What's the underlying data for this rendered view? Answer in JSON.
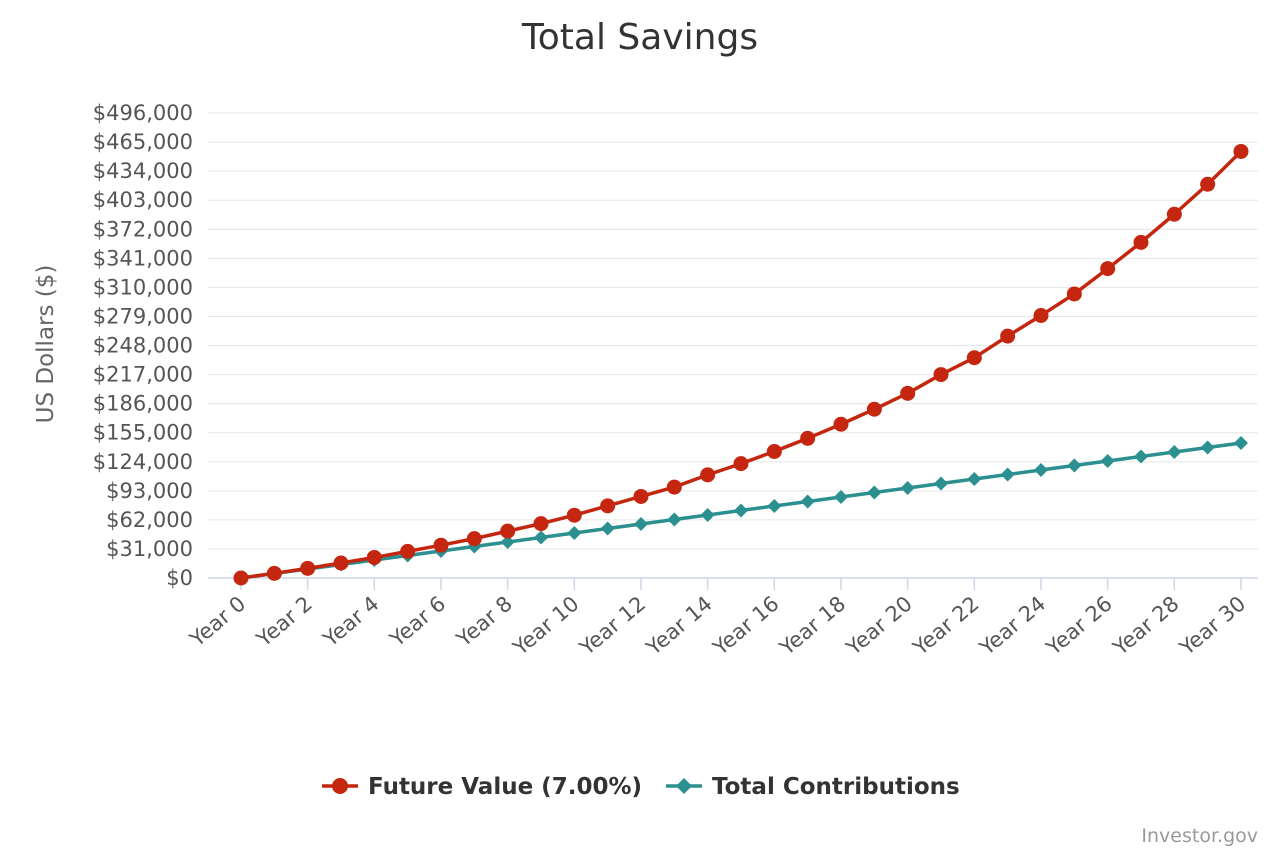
{
  "chart_data": {
    "type": "line",
    "title": "Total Savings",
    "ylabel": "US Dollars ($)",
    "xlabel": "",
    "ylim": [
      0,
      496000
    ],
    "y_ticks": [
      "$0",
      "$31,000",
      "$62,000",
      "$93,000",
      "$124,000",
      "$155,000",
      "$186,000",
      "$217,000",
      "$248,000",
      "$279,000",
      "$310,000",
      "$341,000",
      "$372,000",
      "$403,000",
      "$434,000",
      "$465,000",
      "$496,000"
    ],
    "y_tick_values": [
      0,
      31000,
      62000,
      93000,
      124000,
      155000,
      186000,
      217000,
      248000,
      279000,
      310000,
      341000,
      372000,
      403000,
      434000,
      465000,
      496000
    ],
    "x": [
      0,
      1,
      2,
      3,
      4,
      5,
      6,
      7,
      8,
      9,
      10,
      11,
      12,
      13,
      14,
      15,
      16,
      17,
      18,
      19,
      20,
      21,
      22,
      23,
      24,
      25,
      26,
      27,
      28,
      29,
      30
    ],
    "x_tick_labels": [
      "Year 0",
      "Year 2",
      "Year 4",
      "Year 6",
      "Year 8",
      "Year 10",
      "Year 12",
      "Year 14",
      "Year 16",
      "Year 18",
      "Year 20",
      "Year 22",
      "Year 24",
      "Year 26",
      "Year 28",
      "Year 30"
    ],
    "x_tick_values": [
      0,
      2,
      4,
      6,
      8,
      10,
      12,
      14,
      16,
      18,
      20,
      22,
      24,
      26,
      28,
      30
    ],
    "grid": true,
    "legend_position": "bottom-center",
    "series": [
      {
        "name": "Future Value (7.00%)",
        "color": "#c4260f",
        "marker": "circle",
        "values": [
          0,
          5000,
          10300,
          16000,
          21900,
          28400,
          35000,
          42000,
          50000,
          58000,
          67000,
          77000,
          87000,
          97000,
          110000,
          122000,
          135000,
          149000,
          164000,
          180000,
          197000,
          217000,
          235000,
          258000,
          280000,
          303000,
          330000,
          358000,
          388000,
          420000,
          455000
        ]
      },
      {
        "name": "Total Contributions",
        "color": "#2b908f",
        "marker": "diamond",
        "values": [
          0,
          4800,
          9600,
          14400,
          19200,
          24000,
          28800,
          33600,
          38400,
          43200,
          48000,
          52800,
          57600,
          62400,
          67200,
          72000,
          76800,
          81600,
          86400,
          91200,
          96000,
          100800,
          105600,
          110400,
          115200,
          120000,
          124800,
          129600,
          134400,
          139200,
          144000
        ]
      }
    ]
  },
  "credit": "Investor.gov"
}
